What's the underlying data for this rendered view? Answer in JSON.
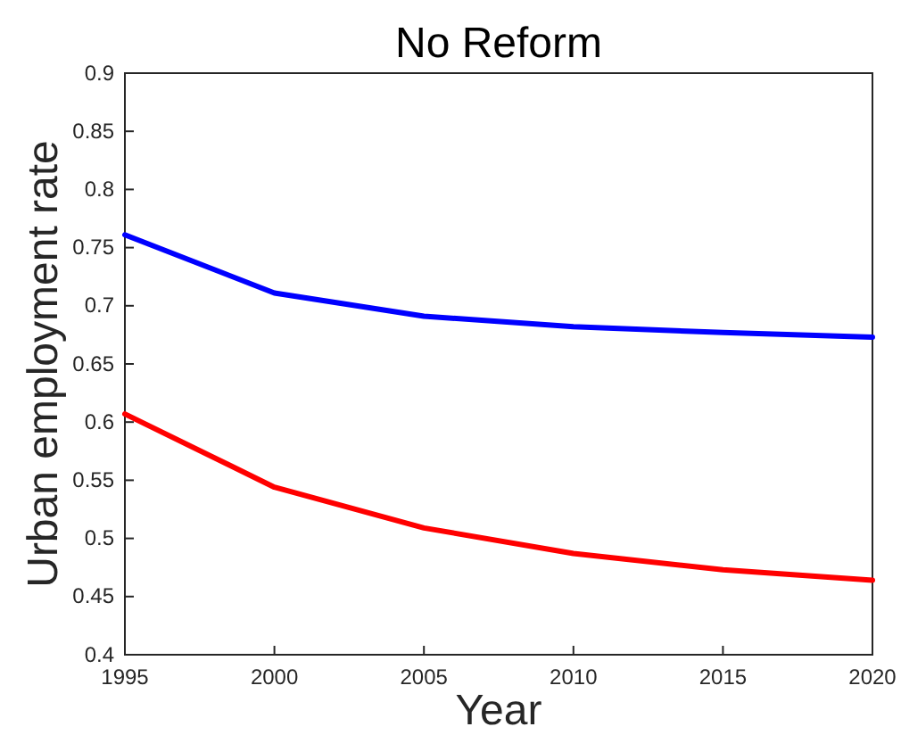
{
  "chart_data": {
    "type": "line",
    "title": "No Reform",
    "xlabel": "Year",
    "ylabel": "Urban employment rate",
    "x": [
      1995,
      2000,
      2005,
      2010,
      2015,
      2020
    ],
    "series": [
      {
        "color": "#0000ff",
        "values": [
          0.761,
          0.711,
          0.691,
          0.682,
          0.677,
          0.673
        ]
      },
      {
        "color": "#ff0000",
        "values": [
          0.607,
          0.544,
          0.509,
          0.487,
          0.473,
          0.464
        ]
      }
    ],
    "xlim": [
      1995,
      2020
    ],
    "xticks": [
      1995,
      2000,
      2005,
      2010,
      2015,
      2020
    ],
    "ylim": [
      0.4,
      0.9
    ],
    "yticks": [
      0.4,
      0.45,
      0.5,
      0.55,
      0.6,
      0.65,
      0.7,
      0.75,
      0.8,
      0.85,
      0.9
    ],
    "grid": false
  }
}
